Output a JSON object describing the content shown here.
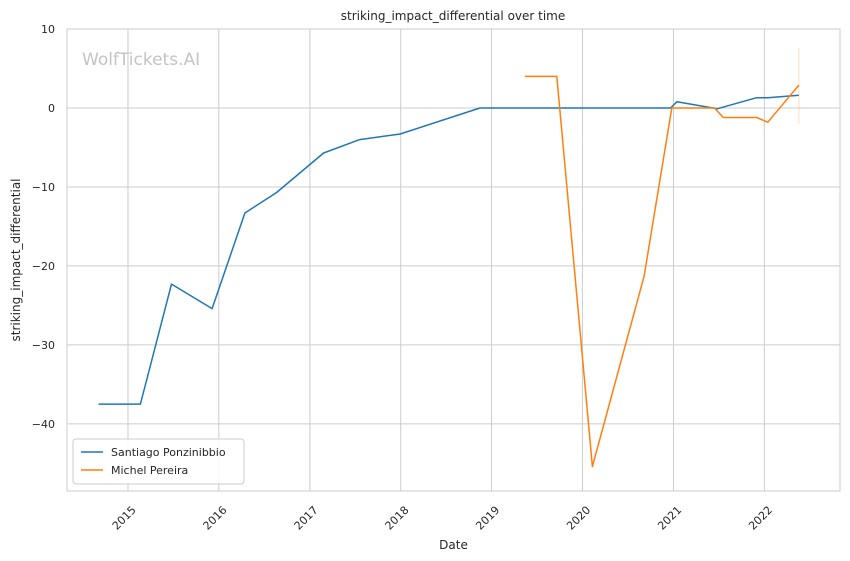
{
  "chart_data": {
    "type": "line",
    "title": "striking_impact_differential over time",
    "xlabel": "Date",
    "ylabel": "striking_impact_differential",
    "watermark": "WolfTickets.AI",
    "xlim": [
      "2014-05-01",
      "2022-11-01"
    ],
    "ylim": [
      -48.5,
      10
    ],
    "x_ticks": [
      "2015",
      "2016",
      "2017",
      "2018",
      "2019",
      "2020",
      "2021",
      "2022"
    ],
    "y_ticks": [
      10,
      0,
      -10,
      -20,
      -30,
      -40
    ],
    "y_tick_labels": [
      "10",
      "0",
      "−10",
      "−20",
      "−30",
      "−40"
    ],
    "grid": true,
    "legend_position": "lower-left",
    "series": [
      {
        "name": "Santiago Ponzinibbio",
        "color": "#1f77b4",
        "points": [
          [
            "2014-09-05",
            -37.5
          ],
          [
            "2015-02-20",
            -37.5
          ],
          [
            "2015-06-25",
            -22.3
          ],
          [
            "2015-12-05",
            -25.4
          ],
          [
            "2016-04-15",
            -13.3
          ],
          [
            "2016-08-20",
            -10.7
          ],
          [
            "2017-02-25",
            -5.7
          ],
          [
            "2017-07-20",
            -4.0
          ],
          [
            "2017-12-30",
            -3.3
          ],
          [
            "2018-11-15",
            0.0
          ],
          [
            "2020-12-20",
            0.0
          ],
          [
            "2021-01-15",
            0.8
          ],
          [
            "2021-06-25",
            -0.1
          ],
          [
            "2021-12-01",
            1.3
          ],
          [
            "2022-01-15",
            1.3
          ],
          [
            "2022-05-20",
            1.6
          ]
        ]
      },
      {
        "name": "Michel Pereira",
        "color": "#ff7f0e",
        "points": [
          [
            "2019-05-15",
            4.0
          ],
          [
            "2019-09-20",
            4.0
          ],
          [
            "2020-02-10",
            -45.4
          ],
          [
            "2020-09-05",
            -21.3
          ],
          [
            "2020-12-25",
            0.0
          ],
          [
            "2021-06-15",
            0.0
          ],
          [
            "2021-07-20",
            -1.2
          ],
          [
            "2021-12-01",
            -1.2
          ],
          [
            "2022-01-15",
            -1.8
          ],
          [
            "2022-05-20",
            2.9
          ]
        ],
        "errorbar": {
          "x": "2022-05-20",
          "low": -2.0,
          "high": 7.6
        }
      }
    ]
  }
}
